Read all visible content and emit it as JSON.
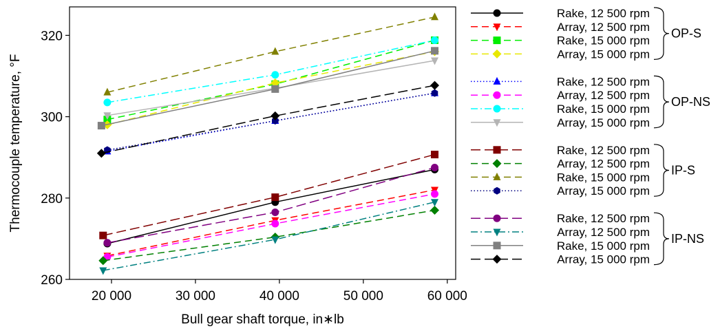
{
  "chart_data": {
    "type": "line",
    "title": "",
    "xlabel": "Bull gear shaft torque, in∗lb",
    "ylabel": "Thermocouple temperature, °F",
    "xlim": [
      15000,
      61000
    ],
    "ylim": [
      260,
      327
    ],
    "xticks": [
      20000,
      30000,
      40000,
      50000,
      60000
    ],
    "xtick_labels": [
      "20 000",
      "30 000",
      "40 000",
      "50 000",
      "60 000"
    ],
    "yticks": [
      260,
      280,
      300,
      320
    ],
    "ytick_labels": [
      "260",
      "280",
      "300",
      "320"
    ],
    "grid": false,
    "legend_position": "right",
    "groups": [
      {
        "label": "OP-S",
        "series": [
          0,
          1,
          2,
          3
        ]
      },
      {
        "label": "OP-NS",
        "series": [
          4,
          5,
          6,
          7
        ]
      },
      {
        "label": "IP-S",
        "series": [
          8,
          9,
          10,
          11
        ]
      },
      {
        "label": "IP-NS",
        "series": [
          12,
          13,
          14,
          15
        ]
      }
    ],
    "series": [
      {
        "name": "Rake, 12 500 rpm",
        "color": "#000000",
        "dash": "solid",
        "marker": "circle",
        "x": [
          19500,
          39500,
          58500
        ],
        "y": [
          268.8,
          279.0,
          287.0
        ]
      },
      {
        "name": "Array, 12 500 rpm",
        "color": "#ff0000",
        "dash": "dash",
        "marker": "triangle-down",
        "x": [
          19500,
          39500,
          58500
        ],
        "y": [
          265.8,
          274.5,
          282.0
        ]
      },
      {
        "name": "Rake, 15 000 rpm",
        "color": "#00ee00",
        "dash": "dash",
        "marker": "square",
        "x": [
          19500,
          39500,
          58500
        ],
        "y": [
          299.3,
          308.0,
          318.8
        ]
      },
      {
        "name": "Array, 15 000 rpm",
        "color": "#e8e800",
        "dash": "dash",
        "marker": "diamond",
        "x": [
          19500,
          39500,
          58500
        ],
        "y": [
          298.0,
          308.3,
          316.0
        ]
      },
      {
        "name": "Rake, 12 500 rpm",
        "color": "#0000ff",
        "dash": "dot",
        "marker": "triangle-up",
        "x": [
          19500,
          39500,
          58500
        ],
        "y": [
          291.5,
          299.0,
          305.8
        ]
      },
      {
        "name": "Array, 12 500 rpm",
        "color": "#ff00ff",
        "dash": "dash",
        "marker": "circle",
        "x": [
          19500,
          39500,
          58500
        ],
        "y": [
          265.5,
          273.7,
          281.0
        ]
      },
      {
        "name": "Rake, 15 000 rpm",
        "color": "#00ffff",
        "dash": "dashdot",
        "marker": "circle",
        "x": [
          19500,
          39500,
          58500
        ],
        "y": [
          303.5,
          310.3,
          318.8
        ]
      },
      {
        "name": "Array, 15 000 rpm",
        "color": "#b4b4b4",
        "dash": "solid",
        "marker": "triangle-down",
        "x": [
          19500,
          39500,
          58500
        ],
        "y": [
          300.3,
          307.0,
          313.8
        ]
      },
      {
        "name": "Rake, 12 500 rpm",
        "color": "#800000",
        "dash": "longdash",
        "marker": "square",
        "x": [
          19000,
          39500,
          58500
        ],
        "y": [
          270.8,
          280.2,
          290.7
        ]
      },
      {
        "name": "Array, 12 500 rpm",
        "color": "#008000",
        "dash": "dash",
        "marker": "diamond",
        "x": [
          19000,
          39500,
          58500
        ],
        "y": [
          264.6,
          270.4,
          277.0
        ]
      },
      {
        "name": "Rake, 15 000 rpm",
        "color": "#808000",
        "dash": "dash",
        "marker": "triangle-up",
        "x": [
          19500,
          39500,
          58500
        ],
        "y": [
          306.0,
          316.0,
          324.5
        ]
      },
      {
        "name": "Array, 15 000 rpm",
        "color": "#000080",
        "dash": "dot",
        "marker": "hexagon",
        "x": [
          19500,
          39500,
          58500
        ],
        "y": [
          291.8,
          299.0,
          305.8
        ]
      },
      {
        "name": "Rake, 12 500 rpm",
        "color": "#800080",
        "dash": "longdash",
        "marker": "circle",
        "x": [
          19500,
          39500,
          58500
        ],
        "y": [
          269.0,
          276.5,
          287.5
        ]
      },
      {
        "name": "Array, 12 500 rpm",
        "color": "#008080",
        "dash": "dashdot",
        "marker": "triangle-down",
        "x": [
          19000,
          39500,
          58500
        ],
        "y": [
          262.2,
          269.8,
          279.0
        ]
      },
      {
        "name": "Rake, 15 000 rpm",
        "color": "#808080",
        "dash": "solid",
        "marker": "square",
        "x": [
          18800,
          39500,
          58500
        ],
        "y": [
          297.8,
          306.8,
          316.2
        ]
      },
      {
        "name": "Array, 15 000 rpm",
        "color": "#000000",
        "dash": "longdash",
        "marker": "diamond",
        "x": [
          18800,
          39500,
          58500
        ],
        "y": [
          291.0,
          300.2,
          307.7
        ]
      }
    ]
  }
}
